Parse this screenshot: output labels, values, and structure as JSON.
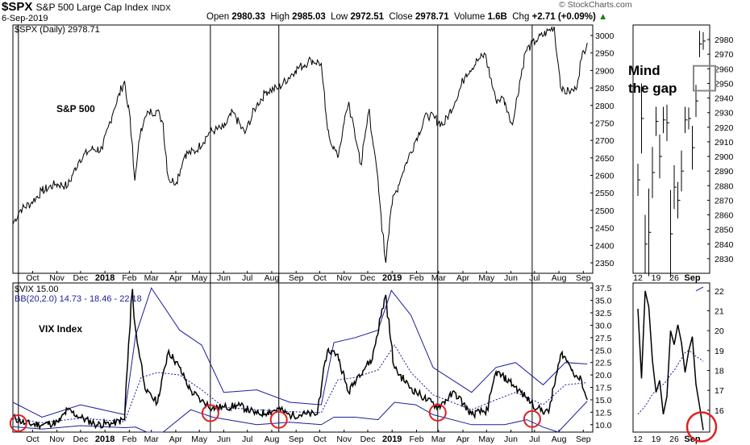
{
  "header": {
    "symbol": "$SPX",
    "name": "S&P 500 Large Cap Index",
    "exchange": "INDX",
    "date": "6-Sep-2019",
    "ohlc": {
      "open_label": "Open",
      "open": "2980.33",
      "high_label": "High",
      "high": "2985.03",
      "low_label": "Low",
      "low": "2972.51",
      "close_label": "Close",
      "close": "2978.71",
      "volume_label": "Volume",
      "volume": "1.6B",
      "chg_label": "Chg",
      "chg": "+2.71 (+0.09%)",
      "chg_arrow": "▲"
    },
    "source": "© StockCharts.com"
  },
  "annotations": {
    "sp500": "S&P 500",
    "vix": "VIX Index",
    "mind_gap_line1": "Mind",
    "mind_gap_line2": "the gap"
  },
  "colors": {
    "price": "#000000",
    "band": "#1c1c9c",
    "basis": "#1c1c9c",
    "vline": "#000000",
    "circle": "#e02020",
    "gap_box": "#888888",
    "positive": "#1a7f1a"
  },
  "chart_data": [
    {
      "id": "spx-daily",
      "type": "line",
      "legend": "$SPX (Daily) 2978.71",
      "y_ticks": [
        2350,
        2400,
        2450,
        2500,
        2550,
        2600,
        2650,
        2700,
        2750,
        2800,
        2850,
        2900,
        2950,
        3000
      ],
      "ylim": [
        2320,
        3030
      ],
      "x_labels": [
        "Oct",
        "Nov",
        "Dec",
        "2018",
        "Feb",
        "Mar",
        "Apr",
        "May",
        "Jun",
        "Jul",
        "Aug",
        "Sep",
        "Oct",
        "Nov",
        "Dec",
        "2019",
        "Feb",
        "Mar",
        "Apr",
        "May",
        "Jun",
        "Jul",
        "Aug",
        "Sep"
      ],
      "x_label_months": [
        "2017-10",
        "2017-11",
        "2017-12",
        "2018-01",
        "2018-02",
        "2018-03",
        "2018-04",
        "2018-05",
        "2018-06",
        "2018-07",
        "2018-08",
        "2018-09",
        "2018-10",
        "2018-11",
        "2018-12",
        "2019-01",
        "2019-02",
        "2019-03",
        "2019-04",
        "2019-05",
        "2019-06",
        "2019-07",
        "2019-08",
        "2019-09"
      ],
      "bold_labels": [
        "2018",
        "2019"
      ],
      "xlim": [
        "2017-09-06",
        "2019-09-13"
      ],
      "series": [
        {
          "name": "$SPX",
          "x": [
            "2017-09-06",
            "2017-09-15",
            "2017-09-29",
            "2017-10-13",
            "2017-10-31",
            "2017-11-15",
            "2017-11-30",
            "2017-12-15",
            "2017-12-29",
            "2018-01-12",
            "2018-01-26",
            "2018-02-02",
            "2018-02-08",
            "2018-02-16",
            "2018-02-26",
            "2018-03-09",
            "2018-03-16",
            "2018-03-23",
            "2018-04-02",
            "2018-04-13",
            "2018-04-27",
            "2018-05-15",
            "2018-06-01",
            "2018-06-13",
            "2018-06-28",
            "2018-07-13",
            "2018-07-25",
            "2018-08-10",
            "2018-08-31",
            "2018-09-20",
            "2018-10-03",
            "2018-10-11",
            "2018-10-24",
            "2018-11-07",
            "2018-11-23",
            "2018-12-03",
            "2018-12-14",
            "2018-12-24",
            "2018-12-31",
            "2019-01-15",
            "2019-01-31",
            "2019-02-15",
            "2019-03-08",
            "2019-03-22",
            "2019-04-05",
            "2019-04-23",
            "2019-04-30",
            "2019-05-13",
            "2019-05-23",
            "2019-06-03",
            "2019-06-20",
            "2019-07-03",
            "2019-07-26",
            "2019-08-05",
            "2019-08-14",
            "2019-08-23",
            "2019-08-30",
            "2019-09-06"
          ],
          "values": [
            2460,
            2500,
            2520,
            2555,
            2575,
            2570,
            2645,
            2675,
            2675,
            2785,
            2870,
            2765,
            2585,
            2735,
            2780,
            2785,
            2750,
            2590,
            2580,
            2660,
            2670,
            2725,
            2735,
            2780,
            2720,
            2800,
            2840,
            2850,
            2900,
            2930,
            2920,
            2730,
            2650,
            2810,
            2630,
            2790,
            2590,
            2350,
            2510,
            2610,
            2700,
            2775,
            2745,
            2810,
            2890,
            2935,
            2945,
            2815,
            2820,
            2745,
            2955,
            2985,
            3025,
            2840,
            2840,
            2845,
            2935,
            2979
          ]
        }
      ]
    },
    {
      "id": "spx-inset",
      "type": "line",
      "y_ticks": [
        2830,
        2840,
        2850,
        2860,
        2870,
        2880,
        2890,
        2900,
        2910,
        2920,
        2930,
        2940,
        2950,
        2960,
        2970,
        2980
      ],
      "ylim": [
        2820,
        2990
      ],
      "x_labels": [
        "12",
        "19",
        "26",
        "Sep"
      ],
      "bold_labels": [
        "Sep"
      ],
      "gap": [
        2945,
        2962
      ],
      "series": [
        {
          "name": "$SPX",
          "x": [
            "Aug 12",
            "Aug 13",
            "Aug 14",
            "Aug 15",
            "Aug 16",
            "Aug 19",
            "Aug 20",
            "Aug 21",
            "Aug 22",
            "Aug 23",
            "Aug 26",
            "Aug 27",
            "Aug 28",
            "Aug 29",
            "Aug 30",
            "Sep 3",
            "Sep 4",
            "Sep 5",
            "Sep 6"
          ],
          "values": [
            2884,
            2926,
            2840,
            2848,
            2889,
            2924,
            2900,
            2925,
            2923,
            2847,
            2879,
            2870,
            2890,
            2925,
            2926,
            2906,
            2938,
            2977,
            2979
          ]
        }
      ]
    },
    {
      "id": "vix-daily",
      "type": "line",
      "legend_1": "$VIX 15.00",
      "legend_2": "BB(20,2.0) 14.73 - 18.46 - 22.18",
      "y_ticks": [
        10,
        12.5,
        15,
        17.5,
        20,
        22.5,
        25,
        27.5,
        30,
        32.5,
        35,
        37.5
      ],
      "y_tick_labels": [
        "10.0",
        "12.5",
        "15.0",
        "17.5",
        "20.0",
        "22.5",
        "25.0",
        "27.5",
        "30.0",
        "32.5",
        "35.0",
        "37.5"
      ],
      "ylim": [
        8.5,
        38.5
      ],
      "x_labels": [
        "Oct",
        "Nov",
        "Dec",
        "2018",
        "Feb",
        "Mar",
        "Apr",
        "May",
        "Jun",
        "Jul",
        "Aug",
        "Sep",
        "Oct",
        "Nov",
        "Dec",
        "2019",
        "Feb",
        "Mar",
        "Apr",
        "May",
        "Jun",
        "Jul",
        "Aug",
        "Sep"
      ],
      "series": [
        {
          "name": "$VIX",
          "x": [
            "2017-09-06",
            "2017-09-22",
            "2017-10-13",
            "2017-11-03",
            "2017-11-15",
            "2017-12-01",
            "2017-12-22",
            "2018-01-12",
            "2018-01-26",
            "2018-02-05",
            "2018-02-09",
            "2018-02-23",
            "2018-03-09",
            "2018-03-23",
            "2018-04-06",
            "2018-04-20",
            "2018-05-04",
            "2018-05-18",
            "2018-06-01",
            "2018-06-22",
            "2018-07-13",
            "2018-07-27",
            "2018-08-10",
            "2018-08-24",
            "2018-09-14",
            "2018-09-28",
            "2018-10-11",
            "2018-10-24",
            "2018-11-07",
            "2018-11-20",
            "2018-12-07",
            "2018-12-24",
            "2019-01-04",
            "2019-01-25",
            "2019-02-15",
            "2019-03-01",
            "2019-03-22",
            "2019-04-12",
            "2019-05-03",
            "2019-05-13",
            "2019-05-31",
            "2019-06-21",
            "2019-07-05",
            "2019-07-19",
            "2019-08-05",
            "2019-08-14",
            "2019-08-23",
            "2019-08-30",
            "2019-09-06"
          ],
          "values": [
            11.6,
            10.2,
            10.0,
            10.5,
            13.0,
            11.5,
            10.0,
            10.3,
            11.0,
            37.3,
            29.0,
            16.5,
            14.5,
            24.9,
            21.5,
            16.9,
            14.8,
            13.4,
            13.5,
            13.8,
            12.2,
            12.5,
            13.2,
            11.9,
            12.1,
            12.1,
            24.98,
            24.2,
            16.4,
            20.1,
            23.2,
            36.1,
            21.4,
            17.4,
            14.9,
            13.6,
            16.5,
            12.1,
            12.9,
            20.6,
            18.7,
            15.4,
            13.3,
            12.4,
            24.6,
            22.1,
            19.9,
            18.9,
            15.0
          ]
        },
        {
          "name": "BB upper",
          "x": [
            "2017-09-06",
            "2017-10-13",
            "2017-12-01",
            "2018-01-26",
            "2018-02-09",
            "2018-03-01",
            "2018-04-06",
            "2018-05-04",
            "2018-06-01",
            "2018-07-13",
            "2018-08-24",
            "2018-10-03",
            "2018-10-19",
            "2018-11-15",
            "2018-12-14",
            "2018-12-31",
            "2019-01-25",
            "2019-02-22",
            "2019-04-12",
            "2019-05-13",
            "2019-06-07",
            "2019-07-12",
            "2019-08-09",
            "2019-09-06"
          ],
          "values": [
            14.5,
            11.5,
            14.0,
            12.0,
            28.0,
            37.5,
            29.0,
            26.0,
            16.5,
            17.0,
            14.5,
            14.0,
            26.5,
            27.5,
            29.0,
            37.0,
            32.0,
            21.5,
            16.5,
            21.5,
            22.5,
            18.0,
            22.5,
            22.2
          ]
        },
        {
          "name": "BB basis",
          "x": [
            "2017-09-06",
            "2017-10-13",
            "2017-12-01",
            "2018-01-26",
            "2018-02-16",
            "2018-03-09",
            "2018-04-06",
            "2018-05-04",
            "2018-06-01",
            "2018-07-13",
            "2018-08-24",
            "2018-10-03",
            "2018-10-24",
            "2018-11-15",
            "2018-12-14",
            "2019-01-04",
            "2019-01-25",
            "2019-02-22",
            "2019-04-12",
            "2019-05-13",
            "2019-06-07",
            "2019-07-12",
            "2019-08-09",
            "2019-09-06"
          ],
          "values": [
            11.2,
            10.4,
            11.3,
            10.6,
            19.5,
            20.5,
            20.0,
            17.0,
            13.5,
            13.0,
            12.6,
            12.4,
            19.0,
            19.5,
            21.0,
            26.0,
            20.5,
            16.0,
            13.0,
            15.0,
            16.5,
            14.0,
            18.0,
            18.46
          ]
        },
        {
          "name": "BB lower",
          "x": [
            "2017-09-06",
            "2017-10-13",
            "2017-12-01",
            "2018-01-26",
            "2018-02-09",
            "2018-02-23",
            "2018-03-16",
            "2018-04-20",
            "2018-05-18",
            "2018-07-13",
            "2018-08-24",
            "2018-10-03",
            "2018-10-19",
            "2018-11-15",
            "2018-12-14",
            "2019-01-04",
            "2019-01-31",
            "2019-02-22",
            "2019-04-12",
            "2019-05-24",
            "2019-06-21",
            "2019-07-12",
            "2019-07-31",
            "2019-09-06"
          ],
          "values": [
            9.6,
            9.1,
            9.8,
            9.4,
            9.5,
            4.0,
            8.5,
            13.0,
            11.5,
            10.0,
            10.5,
            10.0,
            11.5,
            11.5,
            11.0,
            14.5,
            14.0,
            12.0,
            10.0,
            10.0,
            11.0,
            9.5,
            8.5,
            14.73
          ]
        }
      ],
      "circled": [
        "2017-09-13",
        "2018-05-15",
        "2018-08-10",
        "2019-02-28",
        "2019-06-28"
      ]
    },
    {
      "id": "vix-inset",
      "type": "line",
      "y_ticks": [
        16,
        17,
        18,
        19,
        20,
        21,
        22
      ],
      "ylim": [
        14.9,
        22.4
      ],
      "x_labels": [
        "12",
        "19",
        "26",
        "Sep"
      ],
      "bold_labels": [
        "Sep"
      ],
      "series": [
        {
          "name": "$VIX",
          "x": [
            "Aug 12",
            "Aug 13",
            "Aug 14",
            "Aug 15",
            "Aug 16",
            "Aug 19",
            "Aug 20",
            "Aug 21",
            "Aug 22",
            "Aug 23",
            "Aug 26",
            "Aug 27",
            "Aug 28",
            "Aug 29",
            "Aug 30",
            "Sep 3",
            "Sep 4",
            "Sep 5",
            "Sep 6"
          ],
          "values": [
            21.1,
            17.6,
            22.0,
            21.2,
            18.5,
            16.9,
            17.5,
            15.8,
            16.7,
            20.0,
            19.3,
            20.3,
            19.4,
            17.9,
            18.98,
            19.7,
            17.3,
            16.2,
            15.0
          ]
        },
        {
          "name": "BB basis",
          "x": [
            "Aug 12",
            "Aug 13",
            "Aug 14",
            "Aug 15",
            "Aug 16",
            "Aug 19",
            "Aug 20",
            "Aug 21",
            "Aug 22",
            "Aug 23",
            "Aug 26",
            "Aug 27",
            "Aug 28",
            "Aug 29",
            "Aug 30",
            "Sep 3",
            "Sep 4",
            "Sep 5",
            "Sep 6"
          ],
          "values": [
            15.8,
            16.0,
            16.2,
            16.5,
            16.8,
            17.0,
            17.2,
            17.3,
            17.5,
            17.8,
            18.0,
            18.3,
            18.6,
            18.9,
            19.0,
            18.9,
            18.7,
            18.6,
            18.46
          ]
        },
        {
          "name": "BB upper",
          "x": [
            "Sep 4",
            "Sep 5",
            "Sep 6"
          ],
          "values": [
            22.0,
            22.1,
            22.2
          ]
        }
      ],
      "circled": [
        "Sep 6"
      ]
    }
  ]
}
